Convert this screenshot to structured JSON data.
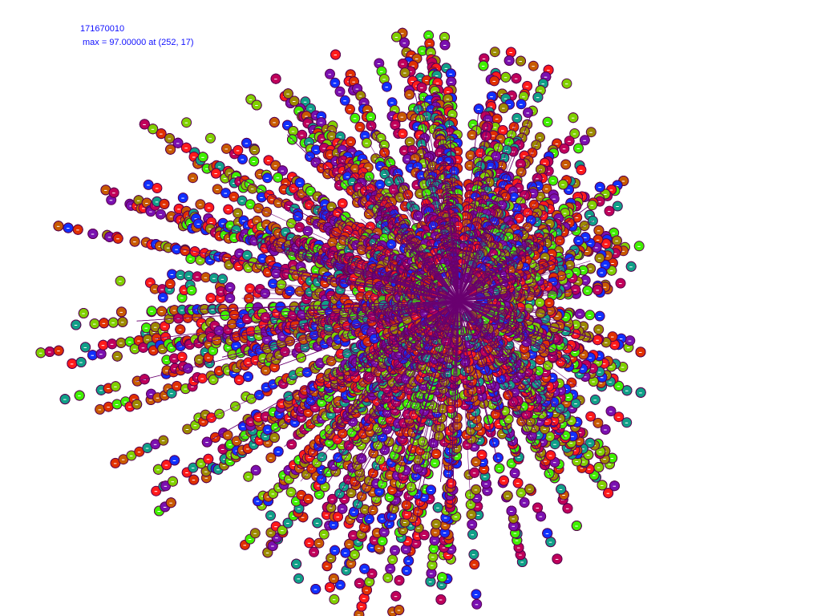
{
  "header": {
    "id_text": "171670010",
    "max_text": "max = 97.00000 at (252, 17)"
  },
  "visual": {
    "text_color": "#1010ff",
    "outline_color": "#5a0050",
    "ray_color": "#6a0070",
    "palette": [
      "#ff1a1a",
      "#40f000",
      "#9c8a00",
      "#c85a00",
      "#1030ff",
      "#7a10b0",
      "#c0005a",
      "#10a088",
      "#e03000",
      "#80d000"
    ]
  }
}
